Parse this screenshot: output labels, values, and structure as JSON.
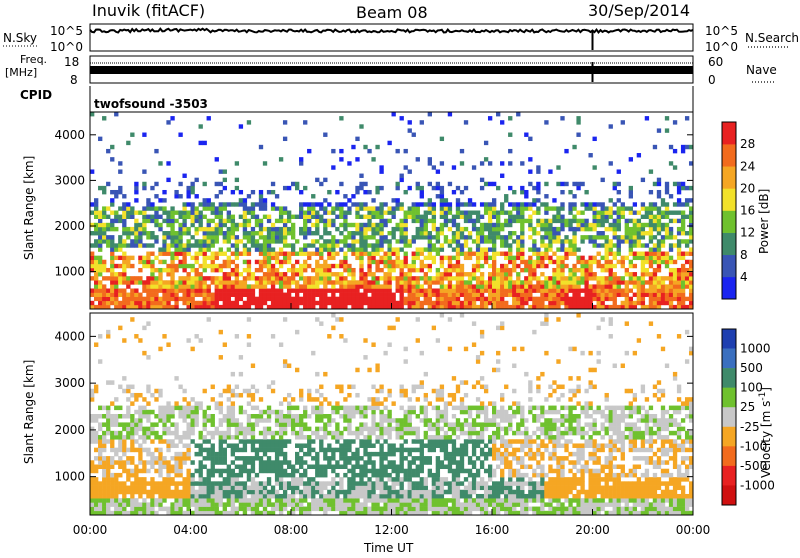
{
  "header": {
    "station": "Inuvik (fitACF)",
    "beam": "Beam 08",
    "date": "30/Sep/2014"
  },
  "sky_panel": {
    "left_label": "N.Sky",
    "left_ticks": [
      "10^5",
      "10^0"
    ],
    "right_label": "N.Search",
    "right_ticks": [
      "10^5",
      "10^0"
    ]
  },
  "freq_panel": {
    "left_label_top": "Freq.",
    "left_label_bottom": "[MHz]",
    "left_ticks": [
      "18",
      "8"
    ],
    "right_label": "Nave",
    "right_ticks": [
      "60",
      "0"
    ]
  },
  "cpid_panel": {
    "label": "CPID",
    "program": "twofsound -3503"
  },
  "chart_data": [
    {
      "type": "heatmap",
      "name": "power",
      "ylabel": "Slant Range [km]",
      "ylim": [
        180,
        4500
      ],
      "yticks": [
        1000,
        2000,
        3000,
        4000
      ],
      "xlabel": "",
      "xlim": [
        0,
        24
      ],
      "colorbar": {
        "label": "Power [dB]",
        "ticks": [
          4,
          8,
          12,
          16,
          20,
          24,
          28
        ],
        "range": [
          0,
          32
        ],
        "colors": [
          "#1a24f0",
          "#3955b5",
          "#3f8a6a",
          "#6fc12e",
          "#f2e12a",
          "#f5a623",
          "#f26b1d",
          "#e82121"
        ]
      }
    },
    {
      "type": "heatmap",
      "name": "velocity",
      "ylabel": "Slant Range [km]",
      "ylim": [
        180,
        4500
      ],
      "yticks": [
        1000,
        2000,
        3000,
        4000
      ],
      "xlabel": "Time UT",
      "xlim": [
        0,
        24
      ],
      "xticks": [
        "00:00",
        "04:00",
        "08:00",
        "12:00",
        "16:00",
        "20:00",
        "00:00"
      ],
      "colorbar": {
        "label_main": "Velocity [m s",
        "label_sup": "-1",
        "label_end": "]",
        "ticks": [
          "1000",
          "500",
          "100",
          "25",
          "-25",
          "-100",
          "-500",
          "-1000"
        ],
        "colors": [
          "#1e3fb0",
          "#3a6fbf",
          "#3f8a6a",
          "#6fc12e",
          "#c8c8c8",
          "#f5a623",
          "#f26b1d",
          "#e82121",
          "#d01010"
        ]
      }
    }
  ]
}
